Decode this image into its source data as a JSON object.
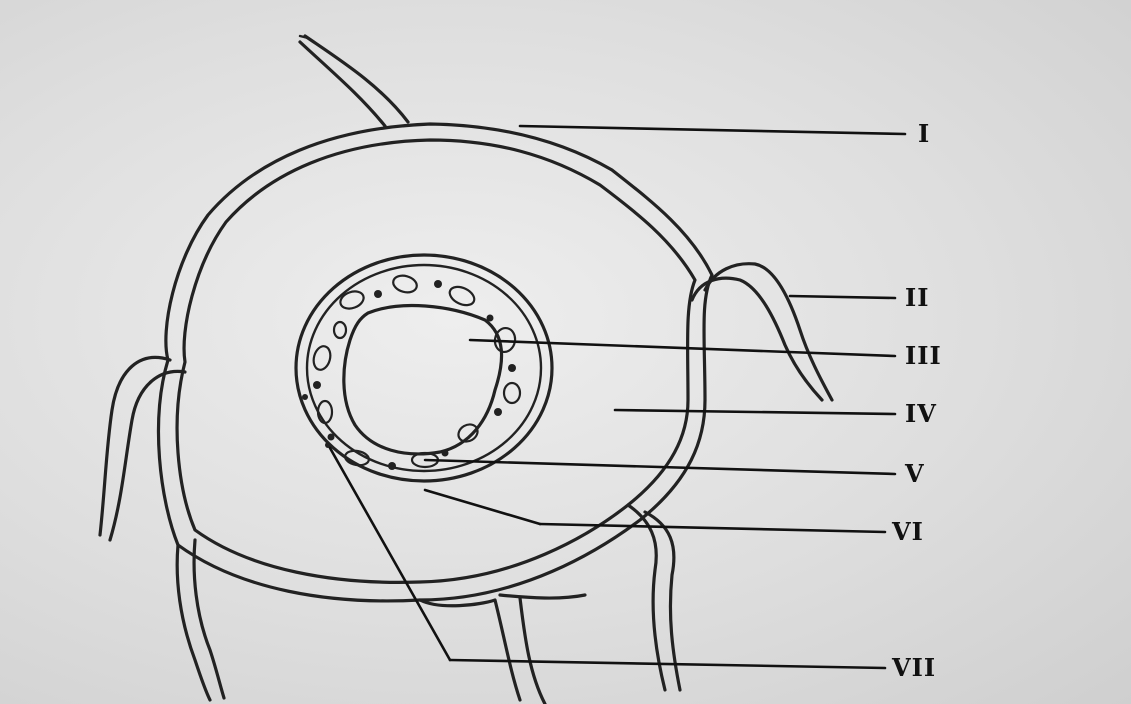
{
  "figure": {
    "labels": {
      "I": "I",
      "II": "II",
      "III": "III",
      "IV": "IV",
      "V": "V",
      "VI": "VI",
      "VII": "VII"
    }
  }
}
